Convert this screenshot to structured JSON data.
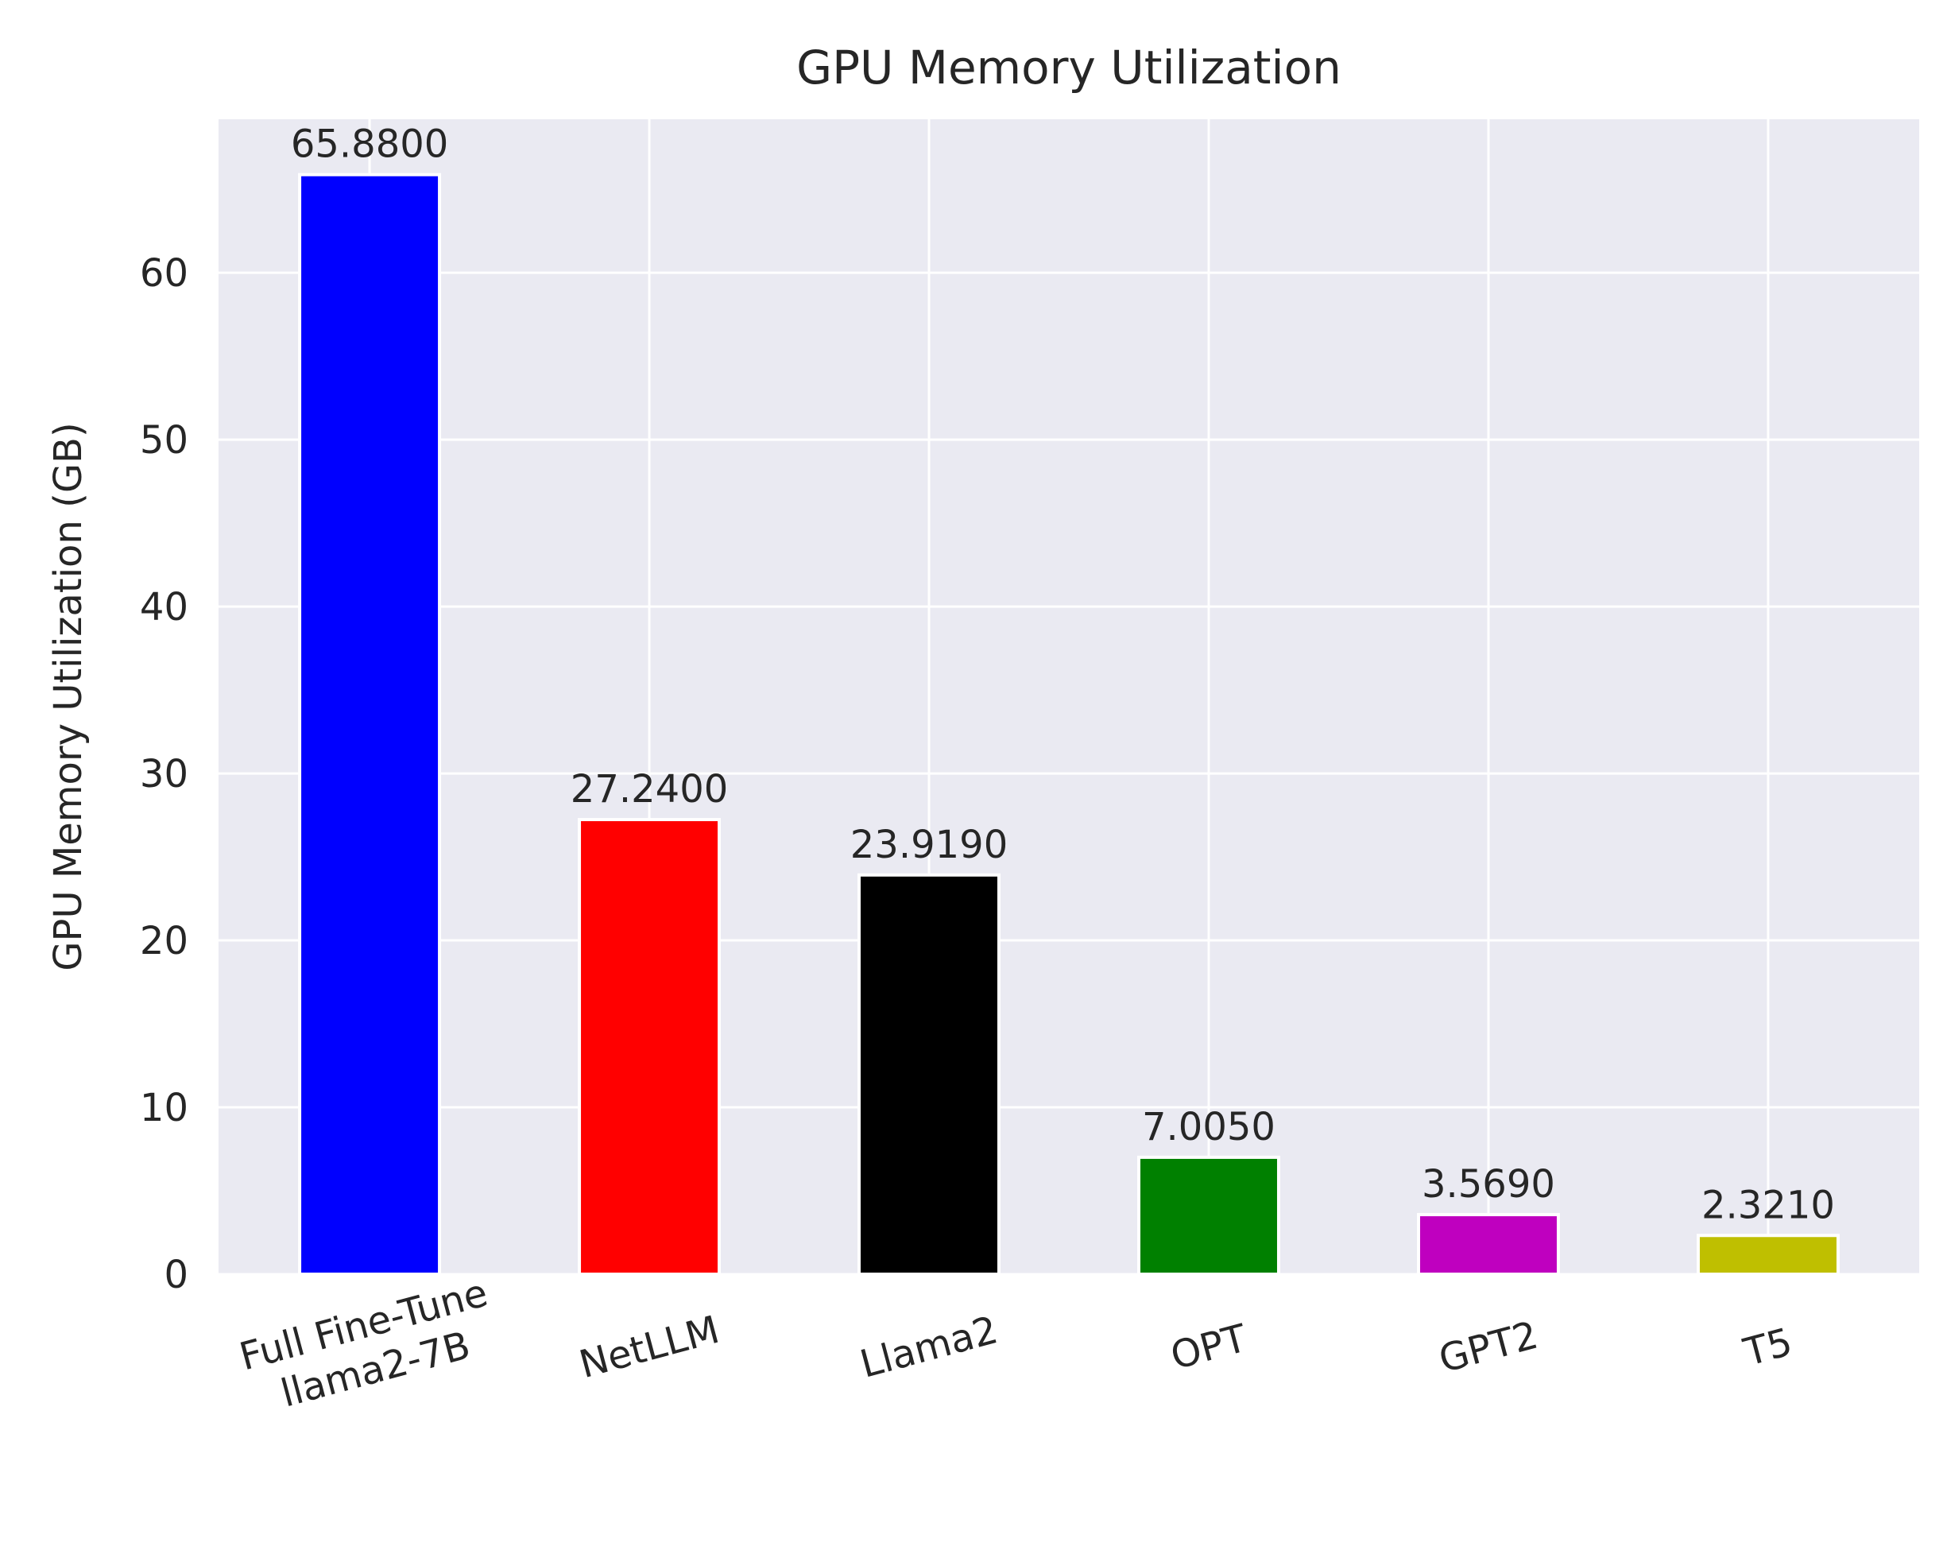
{
  "chart_data": {
    "type": "bar",
    "title": "GPU Memory Utilization",
    "xlabel": "",
    "ylabel": "GPU Memory Utilization (GB)",
    "categories": [
      [
        "Full Fine-Tune",
        "llama2-7B"
      ],
      [
        "NetLLM"
      ],
      [
        "Llama2"
      ],
      [
        "OPT"
      ],
      [
        "GPT2"
      ],
      [
        "T5"
      ]
    ],
    "values": [
      65.88,
      27.24,
      23.919,
      7.005,
      3.569,
      2.321
    ],
    "value_labels": [
      "65.8800",
      "27.2400",
      "23.9190",
      "7.0050",
      "3.5690",
      "2.3210"
    ],
    "colors": [
      "#0000ff",
      "#ff0000",
      "#000000",
      "#008000",
      "#bf00bf",
      "#bfbf00"
    ],
    "ylim": [
      0,
      69.2
    ],
    "yticks": [
      0,
      10,
      20,
      30,
      40,
      50,
      60
    ],
    "grid": true,
    "x_tick_rotation": -15,
    "background": "#eaeaf2"
  }
}
